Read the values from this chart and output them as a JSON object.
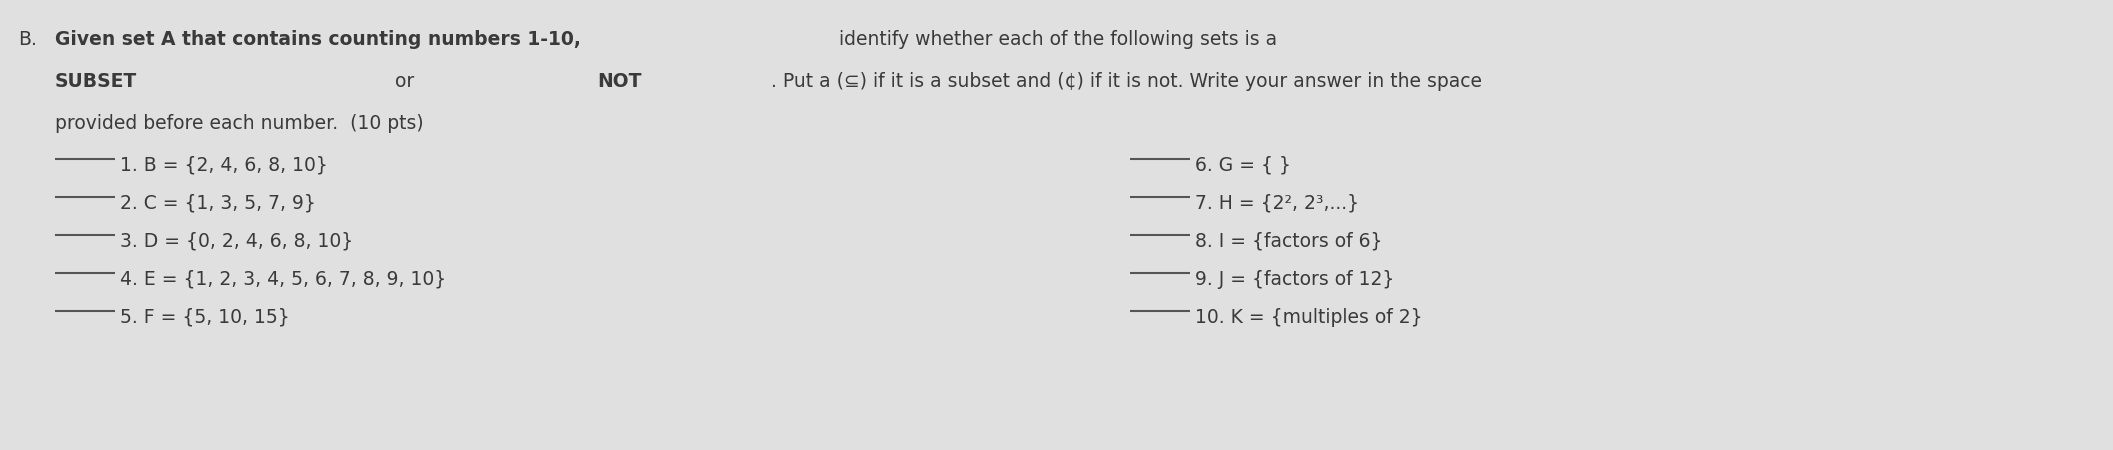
{
  "bg_color": "#e0e0e0",
  "letter_label": "B.",
  "header_line1_bold": "Given set A that contains counting numbers 1-10,",
  "header_line1_normal": " identify whether each of the following sets is a",
  "header_line2_bold1": "SUBSET",
  "header_line2_mid": " or ",
  "header_line2_bold2": "NOT",
  "header_line2_rest": ". Put a (⊆) if it is a subset and (¢) if it is not. Write your answer in the space",
  "header_line3": "provided before each number.  (10 pts)",
  "left_items": [
    "1. B = {2, 4, 6, 8, 10}",
    "2. C = {1, 3, 5, 7, 9}",
    "3. D = {0, 2, 4, 6, 8, 10}",
    "4. E = {1, 2, 3, 4, 5, 6, 7, 8, 9, 10}",
    "5. F = {5, 10, 15}"
  ],
  "right_items": [
    "6. G = { }",
    "7. H = {2², 2³,...}",
    "8. I = {factors of 6}",
    "9. J = {factors of 12}",
    "10. K = {multiples of 2}"
  ]
}
